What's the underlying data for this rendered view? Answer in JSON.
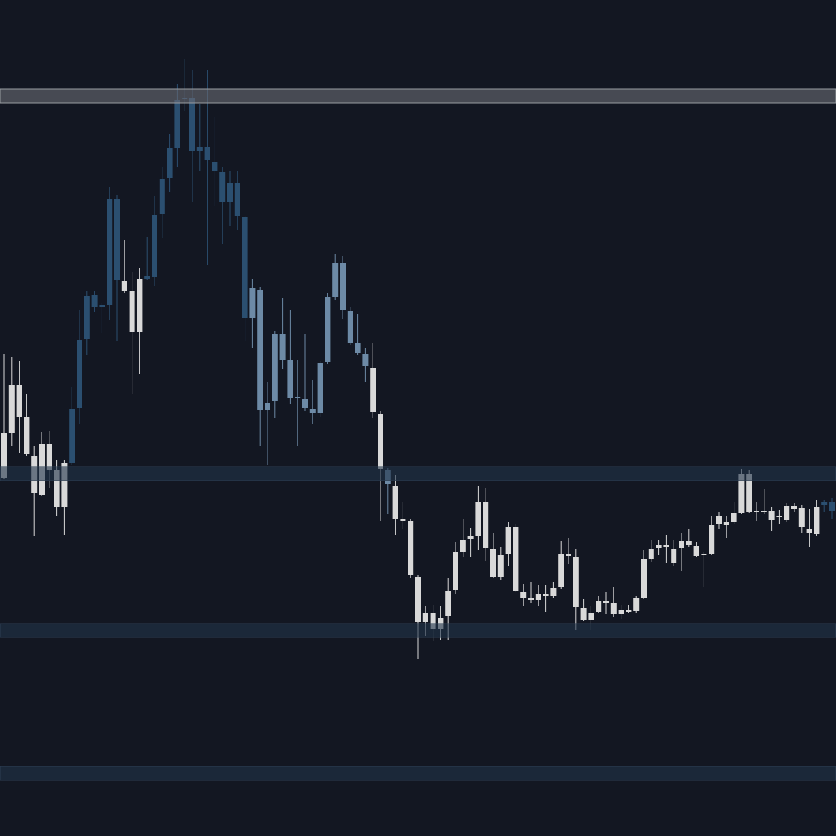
{
  "chart_data": {
    "type": "candlestick",
    "ylim": [
      0,
      1200
    ],
    "background": "#131722",
    "open": [
      514,
      578,
      602,
      548,
      492,
      490,
      525,
      472,
      472,
      535,
      615,
      713,
      760,
      760,
      762,
      798,
      782,
      723,
      723,
      800,
      802,
      893,
      944,
      988,
      1058,
      983,
      983,
      970,
      955,
      910,
      910,
      890,
      744,
      744,
      612,
      612,
      624,
      683,
      629,
      628,
      615,
      607,
      607,
      680,
      773,
      755,
      708,
      693,
      674,
      608,
      527,
      505,
      455,
      452,
      374,
      307,
      307,
      297,
      297,
      316,
      353,
      408,
      427,
      430,
      414,
      372,
      372,
      405,
      352,
      342,
      339,
      339,
      345,
      345,
      358,
      402,
      328,
      310,
      310,
      322,
      335,
      318,
      318,
      322,
      323,
      342,
      398,
      414,
      415,
      392,
      413,
      418,
      402,
      403,
      405,
      448,
      447,
      451,
      464,
      465,
      465,
      465,
      454,
      458,
      454,
      470,
      443,
      435,
      434,
      475,
      467
    ],
    "high": [
      692,
      688,
      682,
      635,
      560,
      580,
      582,
      540,
      540,
      645,
      755,
      782,
      782,
      765,
      932,
      920,
      855,
      810,
      815,
      860,
      918,
      960,
      1008,
      1080,
      1115,
      1100,
      1050,
      1100,
      1032,
      960,
      955,
      955,
      890,
      800,
      788,
      652,
      725,
      772,
      755,
      683,
      720,
      655,
      682,
      780,
      835,
      832,
      760,
      750,
      700,
      708,
      610,
      528,
      518,
      480,
      455,
      375,
      330,
      332,
      330,
      370,
      422,
      455,
      442,
      502,
      500,
      435,
      415,
      450,
      448,
      362,
      365,
      360,
      360,
      364,
      424,
      428,
      412,
      340,
      330,
      345,
      350,
      358,
      332,
      332,
      345,
      410,
      425,
      425,
      432,
      425,
      435,
      440,
      422,
      407,
      460,
      465,
      460,
      480,
      527,
      525,
      480,
      498,
      472,
      468,
      478,
      478,
      475,
      470,
      482,
      482,
      485
    ],
    "low": [
      512,
      560,
      550,
      545,
      430,
      488,
      500,
      460,
      432,
      532,
      592,
      690,
      752,
      722,
      740,
      710,
      780,
      635,
      663,
      798,
      790,
      858,
      925,
      960,
      1040,
      910,
      955,
      820,
      905,
      850,
      875,
      870,
      710,
      700,
      560,
      532,
      600,
      670,
      620,
      560,
      610,
      592,
      602,
      678,
      770,
      742,
      705,
      690,
      652,
      600,
      452,
      462,
      432,
      440,
      370,
      254,
      287,
      280,
      282,
      282,
      348,
      400,
      400,
      410,
      395,
      370,
      368,
      388,
      350,
      330,
      334,
      330,
      322,
      342,
      355,
      390,
      295,
      308,
      295,
      320,
      318,
      315,
      312,
      320,
      320,
      340,
      394,
      403,
      392,
      388,
      380,
      415,
      400,
      358,
      403,
      440,
      428,
      448,
      462,
      463,
      452,
      462,
      438,
      448,
      450,
      465,
      435,
      415,
      430,
      465,
      455
    ],
    "close": [
      578,
      647,
      647,
      602,
      546,
      563,
      563,
      525,
      536,
      613,
      712,
      775,
      776,
      762,
      915,
      915,
      797,
      782,
      800,
      804,
      892,
      943,
      988,
      1057,
      1060,
      1060,
      989,
      989,
      968,
      953,
      938,
      938,
      888,
      786,
      784,
      622,
      721,
      721,
      683,
      630,
      627,
      613,
      679,
      773,
      823,
      822,
      753,
      708,
      692,
      672,
      606,
      525,
      503,
      455,
      452,
      372,
      320,
      320,
      313,
      352,
      407,
      425,
      430,
      480,
      480,
      412,
      403,
      443,
      443,
      350,
      342,
      347,
      347,
      356,
      405,
      405,
      400,
      327,
      320,
      338,
      338,
      334,
      325,
      325,
      341,
      397,
      412,
      417,
      417,
      412,
      424,
      424,
      416,
      405,
      446,
      460,
      450,
      463,
      520,
      520,
      467,
      467,
      467,
      460,
      473,
      474,
      471,
      441,
      472,
      480,
      480
    ],
    "colors": [
      "#d9d9d9",
      "#d9d9d9",
      "#d9d9d9",
      "#d9d9d9",
      "#d9d9d9",
      "#d9d9d9",
      "#d9d9d9",
      "#d9d9d9",
      "#d9d9d9",
      "#2b4f70",
      "#2b4f70",
      "#2b4f70",
      "#2b4f70",
      "#2b4f70",
      "#2b4f70",
      "#2b4f70",
      "#d9d9d9",
      "#d9d9d9",
      "#d9d9d9",
      "#2b4f70",
      "#2b4f70",
      "#2b4f70",
      "#2b4f70",
      "#2b4f70",
      "#2b4f70",
      "#2b4f70",
      "#2b4f70",
      "#2b4f70",
      "#2b4f70",
      "#2b4f70",
      "#2b4f70",
      "#2b4f70",
      "#2b4f70",
      "#6d8aa6",
      "#6d8aa6",
      "#6d8aa6",
      "#6d8aa6",
      "#6d8aa6",
      "#6d8aa6",
      "#6d8aa6",
      "#6d8aa6",
      "#6d8aa6",
      "#6d8aa6",
      "#6d8aa6",
      "#6d8aa6",
      "#6d8aa6",
      "#6d8aa6",
      "#6d8aa6",
      "#6d8aa6",
      "#d9d9d9",
      "#d9d9d9",
      "#6d8aa6",
      "#d9d9d9",
      "#d9d9d9",
      "#d9d9d9",
      "#d9d9d9",
      "#d9d9d9",
      "#d9d9d9",
      "#d9d9d9",
      "#d9d9d9",
      "#d9d9d9",
      "#d9d9d9",
      "#d9d9d9",
      "#d9d9d9",
      "#d9d9d9",
      "#d9d9d9",
      "#d9d9d9",
      "#d9d9d9",
      "#d9d9d9",
      "#d9d9d9",
      "#d9d9d9",
      "#d9d9d9",
      "#d9d9d9",
      "#d9d9d9",
      "#d9d9d9",
      "#d9d9d9",
      "#d9d9d9",
      "#d9d9d9",
      "#d9d9d9",
      "#d9d9d9",
      "#d9d9d9",
      "#d9d9d9",
      "#d9d9d9",
      "#d9d9d9",
      "#d9d9d9",
      "#d9d9d9",
      "#d9d9d9",
      "#d9d9d9",
      "#d9d9d9",
      "#d9d9d9",
      "#d9d9d9",
      "#d9d9d9",
      "#d9d9d9",
      "#d9d9d9",
      "#d9d9d9",
      "#d9d9d9",
      "#d9d9d9",
      "#d9d9d9",
      "#d9d9d9",
      "#d9d9d9",
      "#d9d9d9",
      "#d9d9d9",
      "#d9d9d9",
      "#d9d9d9",
      "#d9d9d9",
      "#d9d9d9",
      "#d9d9d9",
      "#d9d9d9",
      "#d9d9d9",
      "#2b4f70",
      "#2b4f70"
    ],
    "zones": [
      {
        "from": 1052,
        "to": 1072,
        "color": "#6a6d74",
        "border": "#9a9da2"
      },
      {
        "from": 510,
        "to": 530,
        "color": "#22334a",
        "border": "#2c3e52"
      },
      {
        "from": 285,
        "to": 305,
        "color": "#22334a",
        "border": "#2c3e52"
      },
      {
        "from": 80,
        "to": 100,
        "color": "#22334a",
        "border": "#2c3e52"
      }
    ]
  }
}
